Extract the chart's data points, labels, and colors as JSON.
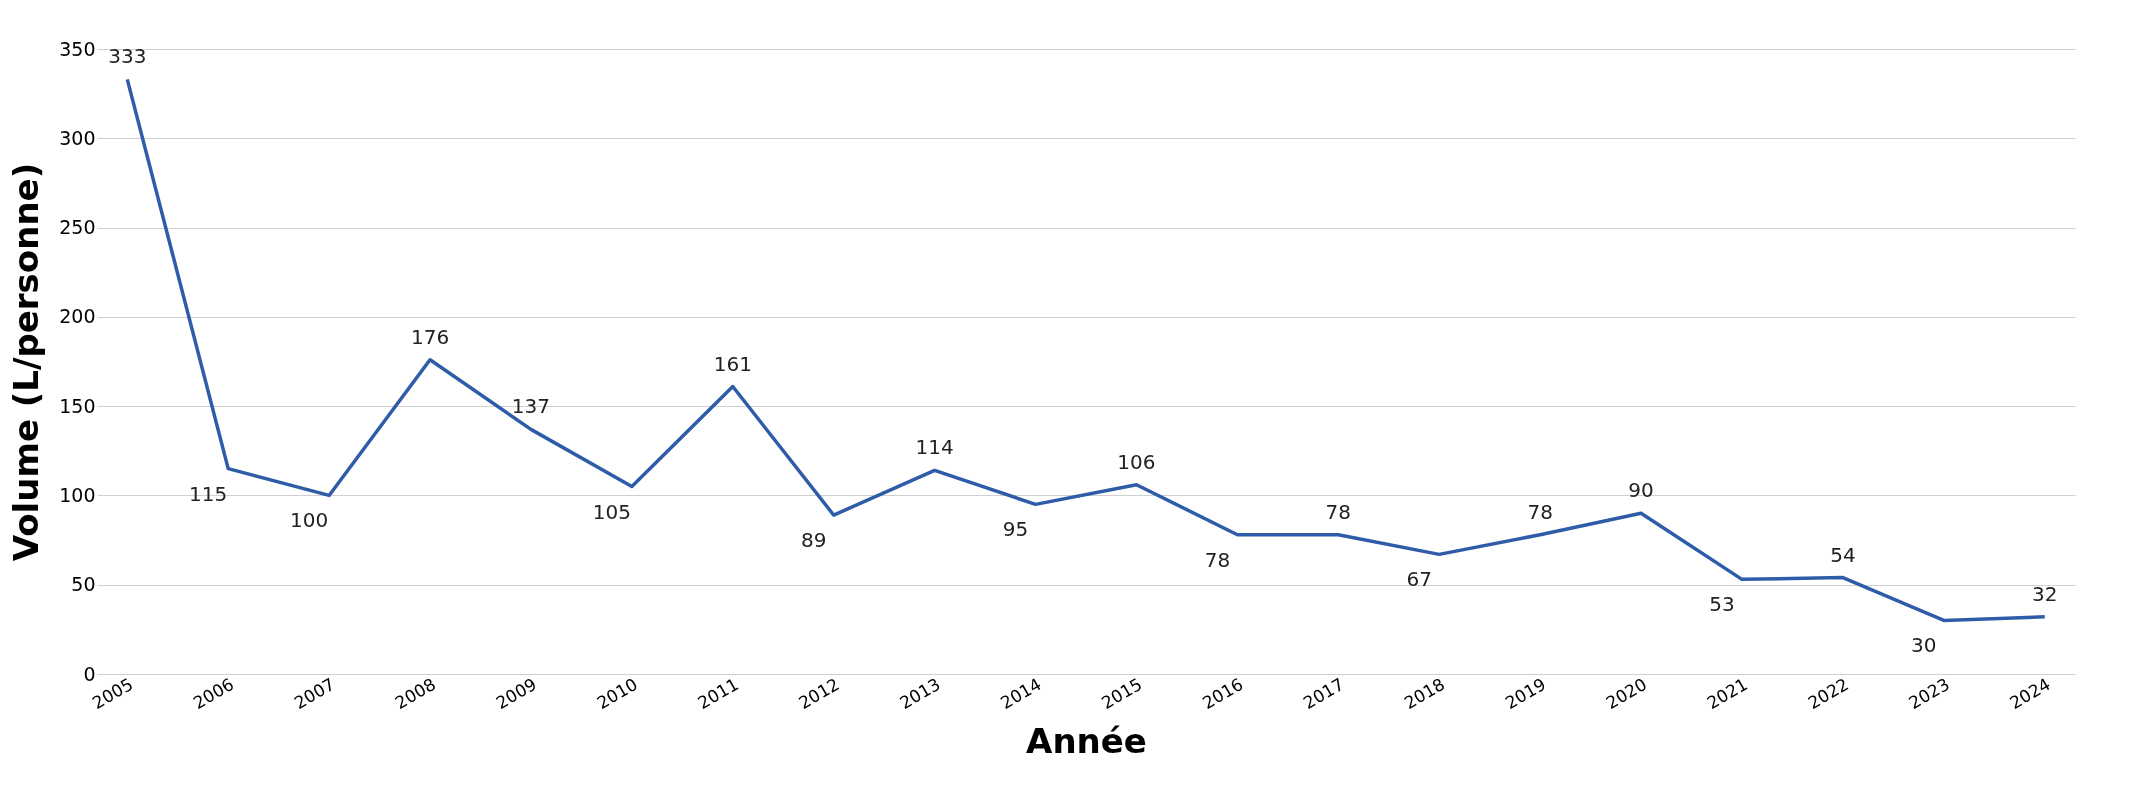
{
  "chart_data": {
    "type": "line",
    "xlabel": "Année",
    "ylabel": "Volume (L/personne)",
    "categories": [
      "2005",
      "2006",
      "2007",
      "2008",
      "2009",
      "2010",
      "2011",
      "2012",
      "2013",
      "2014",
      "2015",
      "2016",
      "2017",
      "2018",
      "2019",
      "2020",
      "2021",
      "2022",
      "2023",
      "2024"
    ],
    "series": [
      {
        "color": "#2e5ca8",
        "values": [
          333,
          115,
          100,
          176,
          137,
          105,
          161,
          89,
          114,
          95,
          106,
          78,
          78,
          67,
          78,
          90,
          53,
          54,
          30,
          32
        ]
      }
    ],
    "ylim": [
      0,
      350
    ],
    "yticks": [
      0,
      50,
      100,
      150,
      200,
      250,
      300,
      350
    ],
    "grid": "y",
    "data_labels": true,
    "legend": false,
    "marker": "none",
    "line_style": "solid"
  }
}
